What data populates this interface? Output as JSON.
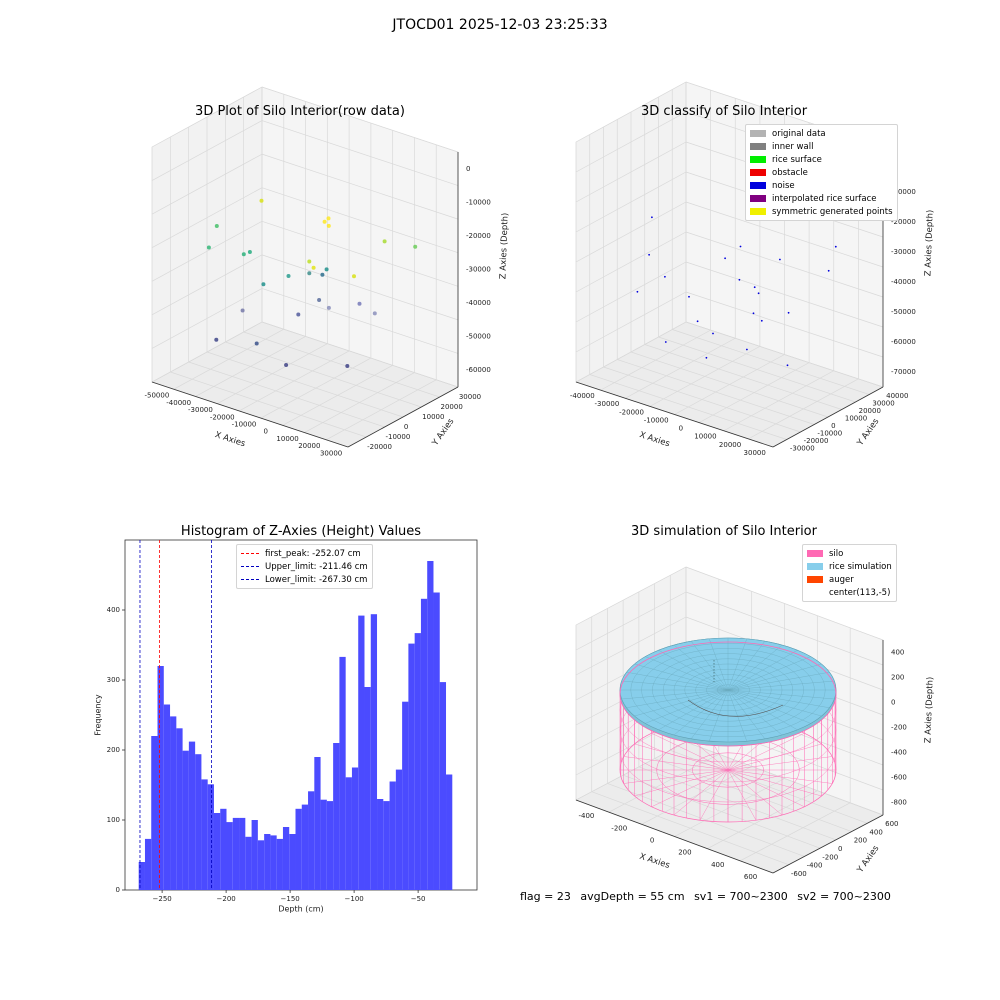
{
  "page_title": "JTOCD01 2025-12-03 23:25:33",
  "footer": {
    "flag": "flag = 23",
    "avg_depth": "avgDepth = 55 cm",
    "sv1": "sv1 = 700~2300",
    "sv2": "sv2 = 700~2300"
  },
  "chart_data": [
    {
      "type": "scatter",
      "title": "3D Plot of Silo Interior(row data)",
      "xlabel": "X Axies",
      "ylabel": "Y Axies",
      "zlabel": "Z Axies (Depth)",
      "xlim": [
        -55000,
        35000
      ],
      "ylim": [
        -25000,
        35000
      ],
      "zlim": [
        -65000,
        2000
      ],
      "x_ticks": [
        "-50000",
        "-40000",
        "-30000",
        "-20000",
        "-10000",
        "0",
        "10000",
        "20000",
        "30000"
      ],
      "y_ticks": [
        "-20000",
        "-10000",
        "0",
        "10000",
        "20000",
        "30000"
      ],
      "z_ticks": [
        "0",
        "-10000",
        "-20000",
        "-30000",
        "-40000",
        "-50000",
        "-60000"
      ],
      "colormap": "viridis"
    },
    {
      "type": "scatter",
      "title": "3D classify of Silo Interior",
      "xlabel": "X Axies",
      "ylabel": "Y Axies",
      "zlabel": "Z Axies (Depth)",
      "x_ticks": [
        "-40000",
        "-30000",
        "-20000",
        "-10000",
        "0",
        "10000",
        "20000",
        "30000"
      ],
      "y_ticks": [
        "-30000",
        "-20000",
        "-10000",
        "0",
        "10000",
        "20000",
        "30000",
        "40000"
      ],
      "z_ticks": [
        "0",
        "-10000",
        "-20000",
        "-30000",
        "-40000",
        "-50000",
        "-60000",
        "-70000"
      ],
      "legend": [
        {
          "label": "original data",
          "color": "#b3b3b3"
        },
        {
          "label": "inner wall",
          "color": "#808080"
        },
        {
          "label": "rice surface",
          "color": "#00ee00"
        },
        {
          "label": "obstacle",
          "color": "#ee0000"
        },
        {
          "label": "noise",
          "color": "#0000dd"
        },
        {
          "label": "interpolated rice surface",
          "color": "#800080"
        },
        {
          "label": "symmetric generated points",
          "color": "#f0f000"
        }
      ]
    },
    {
      "type": "bar",
      "title": "Histogram of Z-Axies (Height) Values",
      "xlabel": "Depth (cm)",
      "ylabel": "Frequency",
      "xlim": [
        -279,
        -4
      ],
      "ylim": [
        0,
        500
      ],
      "x_ticks": [
        -250,
        -200,
        -150,
        -100,
        -50
      ],
      "x_tick_labels": [
        "−250",
        "−200",
        "−150",
        "−100",
        "−50"
      ],
      "y_ticks": [
        0,
        100,
        200,
        300,
        400
      ],
      "bar_color": "#4b4bff",
      "bin_start": -268.3,
      "bin_width": 4.9,
      "values": [
        40,
        73,
        220,
        320,
        265,
        248,
        231,
        199,
        212,
        194,
        158,
        151,
        110,
        116,
        97,
        103,
        103,
        76,
        100,
        71,
        80,
        78,
        73,
        90,
        80,
        116,
        122,
        141,
        190,
        129,
        127,
        210,
        333,
        161,
        175,
        392,
        290,
        394,
        130,
        127,
        155,
        172,
        269,
        352,
        367,
        416,
        470,
        425,
        297,
        165
      ],
      "vlines": [
        {
          "label": "first_peak: -252.07 cm",
          "x": -252.07,
          "color": "#ff0000"
        },
        {
          "label": "Upper_limit: -211.46 cm",
          "x": -211.46,
          "color": "#0000c0"
        },
        {
          "label": "Lower_limit: -267.30 cm",
          "x": -267.3,
          "color": "#0000c0"
        }
      ]
    },
    {
      "type": "surface",
      "title": "3D simulation of Silo Interior",
      "xlabel": "X Axies",
      "ylabel": "Y Axies",
      "zlabel": "Z Axies (Depth)",
      "x_ticks": [
        "-400",
        "-200",
        "0",
        "200",
        "400",
        "600"
      ],
      "y_ticks": [
        "-600",
        "-400",
        "-200",
        "0",
        "200",
        "400",
        "600"
      ],
      "z_ticks": [
        "400",
        "200",
        "0",
        "-200",
        "-400",
        "-600",
        "-800"
      ],
      "legend": [
        {
          "label": "silo",
          "color": "#ff69b4"
        },
        {
          "label": "rice simulation",
          "color": "#87ceeb"
        },
        {
          "label": "auger",
          "color": "#ff4500"
        },
        {
          "label": "center(113,-5)",
          "color": ""
        }
      ]
    }
  ]
}
